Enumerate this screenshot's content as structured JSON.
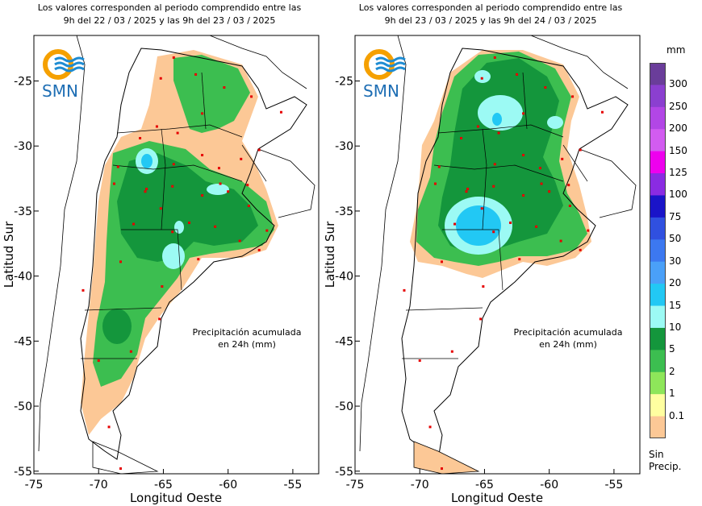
{
  "maps": [
    {
      "title_line1": "Los valores corresponden al periodo comprendido entre las",
      "title_line2": "9h del 22 / 03 / 2025  y las 9h del 23 / 03 / 2025",
      "annotation_line1": "Precipitación acumulada",
      "annotation_line2": "en 24h (mm)"
    },
    {
      "title_line1": "Los valores corresponden al periodo comprendido entre las",
      "title_line2": "9h del 23 / 03 / 2025  y las 9h del 24 / 03 / 2025",
      "annotation_line1": "Precipitación acumulada",
      "annotation_line2": "en 24h (mm)"
    }
  ],
  "logo_text": "SMN",
  "axes": {
    "ylabel": "Latitud Sur",
    "xlabel": "Longitud Oeste",
    "lat_ticks": [
      "-25",
      "-30",
      "-35",
      "-40",
      "-45",
      "-50",
      "-55"
    ],
    "lon_ticks": [
      "-75",
      "-70",
      "-65",
      "-60",
      "-55"
    ]
  },
  "legend": {
    "unit": "mm",
    "no_data_line1": "Sin",
    "no_data_line2": "Precip.",
    "levels": [
      {
        "label": "300",
        "color": "#6a3d9a"
      },
      {
        "label": "250",
        "color": "#8b3fd0"
      },
      {
        "label": "200",
        "color": "#b246e6"
      },
      {
        "label": "150",
        "color": "#d25cf0"
      },
      {
        "label": "125",
        "color": "#ee00ee"
      },
      {
        "label": "100",
        "color": "#8a2be2"
      },
      {
        "label": "75",
        "color": "#1a14c8"
      },
      {
        "label": "50",
        "color": "#3050e0"
      },
      {
        "label": "30",
        "color": "#3c78f0"
      },
      {
        "label": "20",
        "color": "#4aa0f8"
      },
      {
        "label": "15",
        "color": "#22c8f4"
      },
      {
        "label": "10",
        "color": "#9cfaf4"
      },
      {
        "label": "5",
        "color": "#14963c"
      },
      {
        "label": "2",
        "color": "#3cbe50"
      },
      {
        "label": "1",
        "color": "#8ee65a"
      },
      {
        "label": "0.1",
        "color": "#ffffa0"
      }
    ],
    "nodata_color": "#fcc896"
  },
  "colors": {
    "light_orange": "#fcc896",
    "yellow": "#ffffa0",
    "light_green": "#8ee65a",
    "mid_green": "#3cbe50",
    "green": "#14963c",
    "dark_green": "#0a7a32",
    "pale_cyan": "#9cfaf4",
    "cyan": "#22c8f4",
    "station": "#e60000"
  }
}
